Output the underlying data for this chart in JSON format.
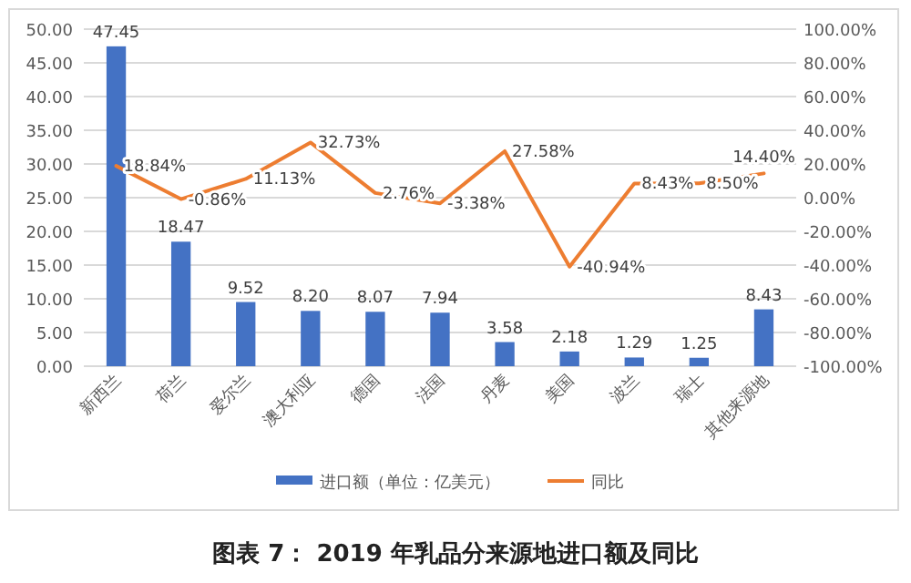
{
  "chart_data": {
    "type": "bar",
    "title": "图表 7： 2019 年乳品分来源地进口额及同比",
    "categories": [
      "新西兰",
      "荷兰",
      "爱尔兰",
      "澳大利亚",
      "德国",
      "法国",
      "丹麦",
      "美国",
      "波兰",
      "瑞士",
      "其他来源地"
    ],
    "series": [
      {
        "name": "进口额（单位：亿美元）",
        "color": "#4472c4",
        "values": [
          47.45,
          18.47,
          9.52,
          8.2,
          8.07,
          7.94,
          3.58,
          2.18,
          1.29,
          1.25,
          8.43
        ],
        "value_labels": [
          "47.45",
          "18.47",
          "9.52",
          "8.20",
          "8.07",
          "7.94",
          "3.58",
          "2.18",
          "1.29",
          "1.25",
          "8.43"
        ]
      },
      {
        "name": "同比",
        "type": "line",
        "axis": "y2",
        "color": "#ed7d31",
        "values": [
          18.84,
          -0.86,
          11.13,
          32.73,
          2.76,
          -3.38,
          27.58,
          -40.94,
          8.43,
          8.5,
          14.4
        ],
        "value_labels": [
          "18.84%",
          "-0.86%",
          "11.13%",
          "32.73%",
          "2.76%",
          "-3.38%",
          "27.58%",
          "-40.94%",
          "8.43%",
          "8.50%",
          "14.40%"
        ]
      }
    ],
    "ylim": [
      0,
      50
    ],
    "yticks": [
      {
        "value": 0,
        "label": "0.00"
      },
      {
        "value": 5,
        "label": "5.00"
      },
      {
        "value": 10,
        "label": "10.00"
      },
      {
        "value": 15,
        "label": "15.00"
      },
      {
        "value": 20,
        "label": "20.00"
      },
      {
        "value": 25,
        "label": "25.00"
      },
      {
        "value": 30,
        "label": "30.00"
      },
      {
        "value": 35,
        "label": "35.00"
      },
      {
        "value": 40,
        "label": "40.00"
      },
      {
        "value": 45,
        "label": "45.00"
      },
      {
        "value": 50,
        "label": "50.00"
      }
    ],
    "y2lim": [
      -100,
      100
    ],
    "y2ticks": [
      {
        "value": -100,
        "label": "-100.00%"
      },
      {
        "value": -80,
        "label": "-80.00%"
      },
      {
        "value": -60,
        "label": "-60.00%"
      },
      {
        "value": -40,
        "label": "-40.00%"
      },
      {
        "value": -20,
        "label": "-20.00%"
      },
      {
        "value": 0,
        "label": "0.00%"
      },
      {
        "value": 20,
        "label": "20.00%"
      },
      {
        "value": 40,
        "label": "40.00%"
      },
      {
        "value": 60,
        "label": "60.00%"
      },
      {
        "value": 80,
        "label": "80.00%"
      },
      {
        "value": 100,
        "label": "100.00%"
      }
    ],
    "grid": "y",
    "legend": "bottom",
    "marker": "none",
    "line_style": "solid"
  }
}
